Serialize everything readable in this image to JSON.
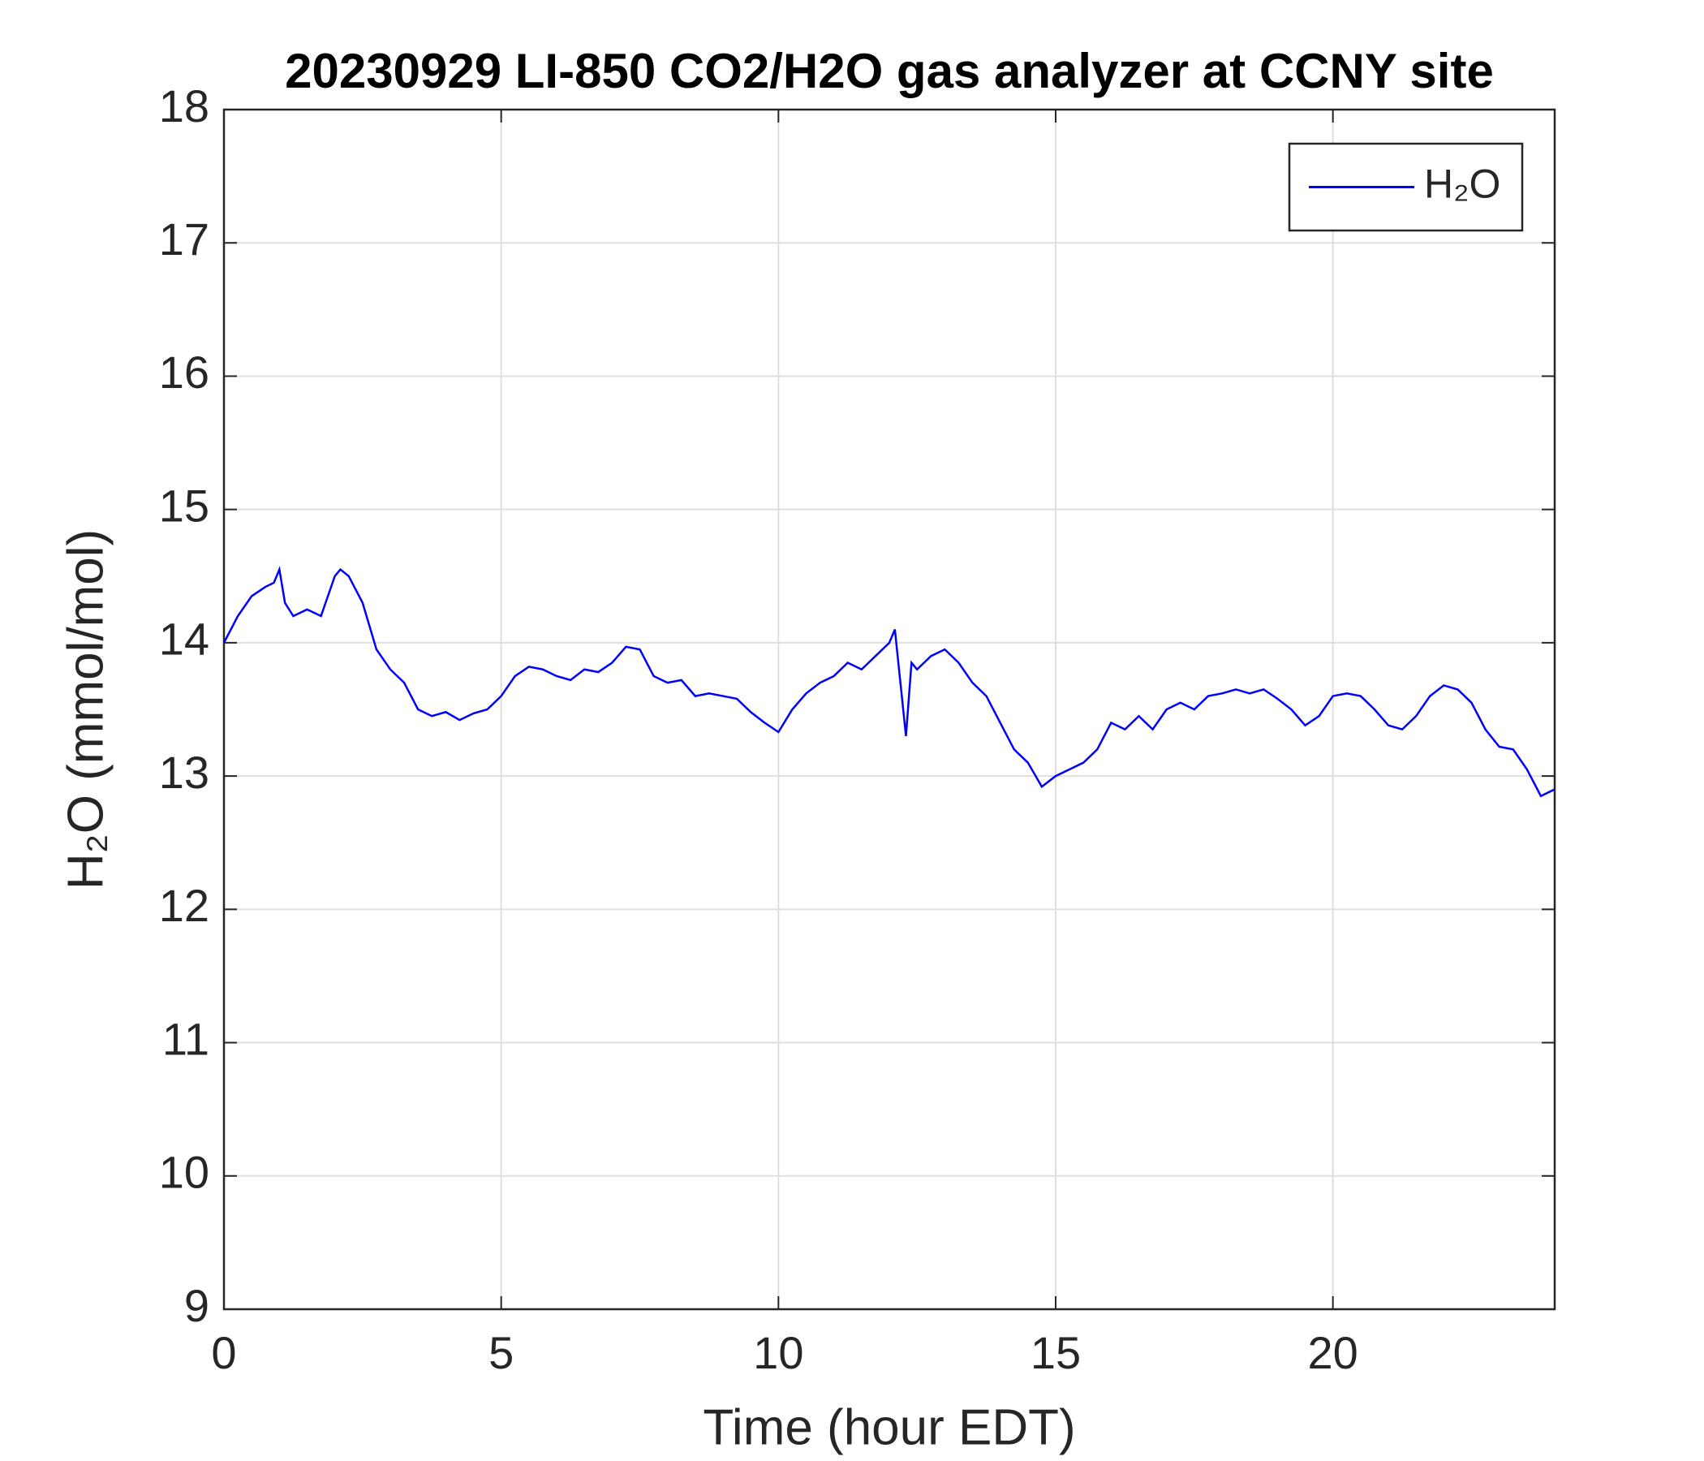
{
  "chart_data": {
    "type": "line",
    "title": "20230929 LI-850 CO2/H2O gas analyzer at CCNY site",
    "xlabel": "Time (hour EDT)",
    "ylabel": "H₂O (mmol/mol)",
    "x": [
      0,
      0.25,
      0.5,
      0.75,
      0.9,
      1.0,
      1.1,
      1.25,
      1.5,
      1.75,
      2.0,
      2.1,
      2.25,
      2.5,
      2.75,
      3.0,
      3.25,
      3.5,
      3.75,
      4.0,
      4.25,
      4.5,
      4.75,
      5.0,
      5.25,
      5.5,
      5.75,
      6.0,
      6.25,
      6.5,
      6.75,
      7.0,
      7.25,
      7.5,
      7.75,
      8.0,
      8.25,
      8.5,
      8.75,
      9.0,
      9.25,
      9.5,
      9.75,
      10.0,
      10.25,
      10.5,
      10.75,
      11.0,
      11.25,
      11.5,
      11.75,
      12.0,
      12.1,
      12.2,
      12.3,
      12.4,
      12.5,
      12.75,
      13.0,
      13.25,
      13.5,
      13.75,
      14.0,
      14.25,
      14.5,
      14.75,
      15.0,
      15.25,
      15.5,
      15.75,
      16.0,
      16.25,
      16.5,
      16.75,
      17.0,
      17.25,
      17.5,
      17.75,
      18.0,
      18.25,
      18.5,
      18.75,
      19.0,
      19.25,
      19.5,
      19.75,
      20.0,
      20.25,
      20.5,
      20.75,
      21.0,
      21.25,
      21.5,
      21.75,
      22.0,
      22.25,
      22.5,
      22.75,
      23.0,
      23.25,
      23.5,
      23.75,
      24.0
    ],
    "series": [
      {
        "name": "H₂O",
        "color": "#0000ff",
        "values": [
          14.0,
          14.2,
          14.35,
          14.42,
          14.45,
          14.55,
          14.3,
          14.2,
          14.25,
          14.2,
          14.5,
          14.55,
          14.5,
          14.3,
          13.95,
          13.8,
          13.7,
          13.5,
          13.45,
          13.48,
          13.42,
          13.47,
          13.5,
          13.6,
          13.75,
          13.82,
          13.8,
          13.75,
          13.72,
          13.8,
          13.78,
          13.85,
          13.97,
          13.95,
          13.75,
          13.7,
          13.72,
          13.6,
          13.62,
          13.6,
          13.58,
          13.48,
          13.4,
          13.33,
          13.5,
          13.62,
          13.7,
          13.75,
          13.85,
          13.8,
          13.9,
          14.0,
          14.1,
          13.7,
          13.3,
          13.85,
          13.8,
          13.9,
          13.95,
          13.85,
          13.7,
          13.6,
          13.4,
          13.2,
          13.1,
          12.92,
          13.0,
          13.05,
          13.1,
          13.2,
          13.4,
          13.35,
          13.45,
          13.35,
          13.5,
          13.55,
          13.5,
          13.6,
          13.62,
          13.65,
          13.62,
          13.65,
          13.58,
          13.5,
          13.38,
          13.45,
          13.6,
          13.62,
          13.6,
          13.5,
          13.38,
          13.35,
          13.45,
          13.6,
          13.68,
          13.65,
          13.55,
          13.35,
          13.22,
          13.2,
          13.05,
          12.85,
          12.9
        ]
      }
    ],
    "xlim": [
      0,
      24
    ],
    "xticks": [
      0,
      5,
      10,
      15,
      20
    ],
    "ylim": [
      9,
      18
    ],
    "yticks": [
      9,
      10,
      11,
      12,
      13,
      14,
      15,
      16,
      17,
      18
    ],
    "grid": true,
    "legend": "top-right"
  }
}
